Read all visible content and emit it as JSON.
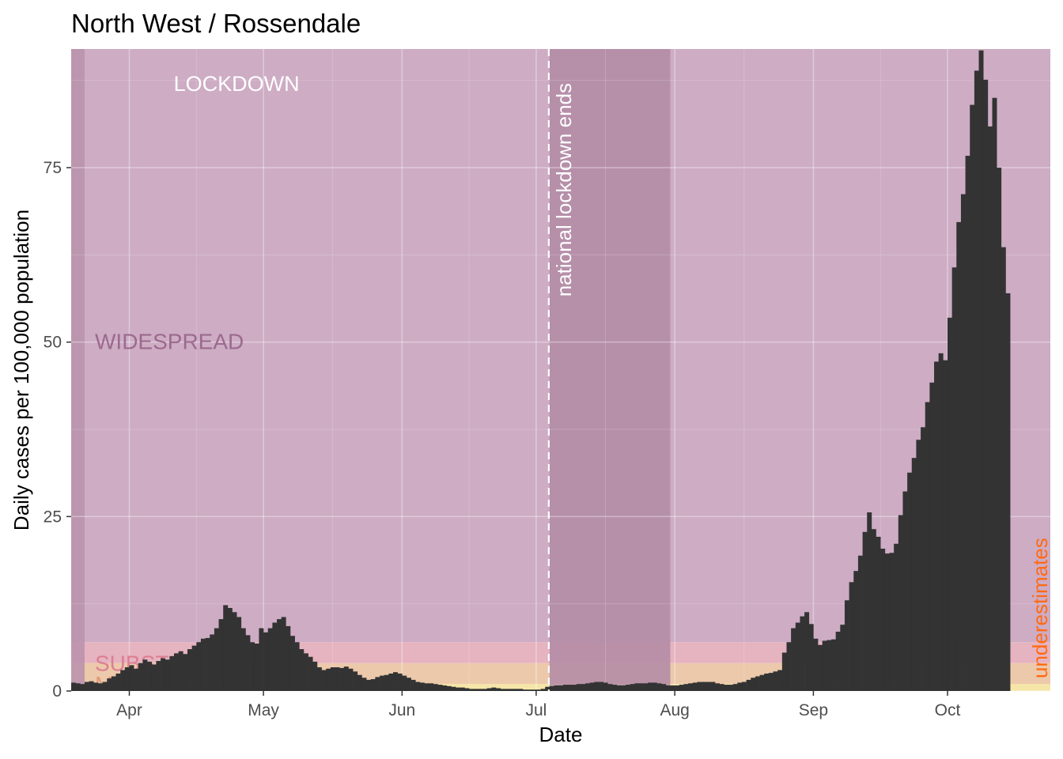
{
  "chart_data": {
    "type": "bar",
    "title": "North West / Rossendale",
    "xlabel": "Date",
    "ylabel": "Daily cases per 100,000 population",
    "x_start": "2020-03-19",
    "x_end": "2020-10-23",
    "ylim": [
      0,
      92
    ],
    "y_ticks": [
      0,
      25,
      50,
      75
    ],
    "x_ticks": [
      {
        "date": "2020-04-01",
        "label": "Apr"
      },
      {
        "date": "2020-05-01",
        "label": "May"
      },
      {
        "date": "2020-06-01",
        "label": "Jun"
      },
      {
        "date": "2020-07-01",
        "label": "Jul"
      },
      {
        "date": "2020-08-01",
        "label": "Aug"
      },
      {
        "date": "2020-09-01",
        "label": "Sep"
      },
      {
        "date": "2020-10-01",
        "label": "Oct"
      }
    ],
    "grid": true,
    "bands": [
      {
        "label": "",
        "ymin": 0,
        "ymax": 1,
        "color": "#f5e6a8"
      },
      {
        "label": "MODERATE",
        "ymin": 1,
        "ymax": 4,
        "color": "#ecc9ab"
      },
      {
        "label": "SUBSTANTIAL",
        "ymin": 4,
        "ymax": 7,
        "color": "#e6b3c0"
      },
      {
        "label": "WIDESPREAD",
        "ymin": 7,
        "ymax": 92,
        "color": "#cdacc4"
      }
    ],
    "band_label_colors": {
      "MODERATE": "#e09a7a",
      "SUBSTANTIAL": "#dc7f92",
      "WIDESPREAD": "#9c6a8e"
    },
    "shaded_periods": [
      {
        "start": "2020-03-19",
        "end": "2020-03-22",
        "color": "#b991ab"
      },
      {
        "start": "2020-07-04",
        "end": "2020-07-31",
        "color": "#b18aa5"
      }
    ],
    "lockdown_label": "LOCKDOWN",
    "lockdown_label_date": "2020-04-25",
    "event_line": {
      "date": "2020-07-04",
      "label": "national lockdown ends"
    },
    "underestimates_label": "underestimates",
    "underestimates_color": "#ff6a13",
    "bar_color": "#333333",
    "values": [
      1.2,
      1.1,
      1.0,
      1.3,
      1.4,
      1.2,
      1.1,
      1.3,
      1.8,
      2.1,
      2.5,
      3.0,
      3.4,
      3.7,
      3.2,
      4.0,
      4.5,
      4.2,
      3.8,
      4.3,
      4.7,
      4.5,
      5.0,
      5.4,
      5.7,
      5.3,
      6.0,
      6.5,
      7.0,
      7.5,
      7.6,
      8.1,
      9.0,
      10.3,
      12.3,
      11.9,
      11.3,
      10.6,
      9.0,
      8.0,
      7.0,
      6.8,
      9.0,
      8.4,
      9.0,
      9.8,
      10.3,
      10.6,
      9.3,
      7.9,
      7.0,
      6.0,
      5.4,
      4.9,
      4.2,
      3.4,
      3.0,
      3.2,
      3.4,
      3.4,
      3.3,
      3.5,
      3.2,
      2.8,
      2.3,
      1.9,
      1.6,
      1.7,
      2.0,
      2.2,
      2.3,
      2.5,
      2.7,
      2.5,
      2.2,
      1.9,
      1.6,
      1.3,
      1.2,
      1.1,
      1.1,
      1.0,
      0.9,
      0.8,
      0.7,
      0.6,
      0.5,
      0.5,
      0.4,
      0.3,
      0.3,
      0.3,
      0.3,
      0.4,
      0.5,
      0.4,
      0.3,
      0.3,
      0.3,
      0.3,
      0.3,
      0.2,
      0.2,
      0.2,
      0.2,
      0.3,
      0.6,
      0.7,
      0.8,
      0.8,
      0.9,
      0.9,
      0.9,
      1.0,
      1.0,
      1.1,
      1.2,
      1.3,
      1.3,
      1.2,
      1.0,
      0.9,
      0.8,
      0.8,
      0.9,
      1.0,
      1.1,
      1.1,
      1.1,
      1.2,
      1.2,
      1.1,
      1.0,
      0.8,
      0.8,
      0.8,
      0.9,
      1.0,
      1.1,
      1.2,
      1.3,
      1.3,
      1.3,
      1.3,
      1.1,
      1.0,
      0.9,
      0.9,
      1.0,
      1.2,
      1.3,
      1.6,
      1.9,
      2.1,
      2.3,
      2.5,
      2.6,
      2.8,
      3.0,
      5.5,
      7.0,
      9.0,
      9.8,
      10.7,
      11.3,
      9.6,
      7.5,
      6.6,
      7.2,
      7.3,
      7.4,
      8.5,
      9.5,
      13.0,
      15.6,
      17.2,
      19.4,
      22.8,
      25.6,
      23.2,
      22.1,
      20.4,
      19.7,
      19.8,
      21.1,
      25.2,
      28.6,
      31.3,
      33.4,
      36.0,
      37.8,
      41.4,
      44.2,
      47.2,
      48.4,
      47.4,
      53.5,
      60.7,
      67.2,
      71.2,
      76.7,
      84.0,
      88.9,
      91.8,
      87.6,
      80.9,
      85.0,
      75.0,
      63.6,
      57.0
    ]
  }
}
